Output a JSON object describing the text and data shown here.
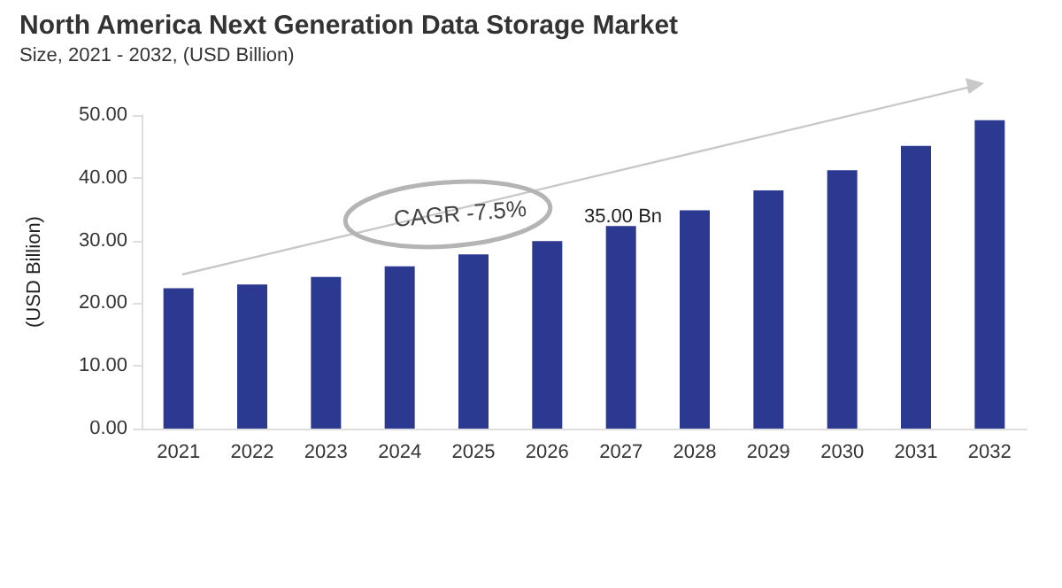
{
  "chart_data": {
    "type": "bar",
    "title": "North America Next Generation Data Storage Market",
    "subtitle": "Size, 2021 - 2032, (USD Billion)",
    "ylabel": "(USD Billion)",
    "categories": [
      "2021",
      "2022",
      "2023",
      "2024",
      "2025",
      "2026",
      "2027",
      "2028",
      "2029",
      "2030",
      "2031",
      "2032"
    ],
    "values": [
      22.4,
      23.0,
      24.2,
      25.9,
      27.8,
      29.9,
      32.3,
      34.8,
      38.0,
      41.2,
      45.1,
      49.2
    ],
    "color": "#2b3990",
    "ylim": [
      0,
      50
    ],
    "yticks": [
      {
        "value": 0,
        "label": "0.00"
      },
      {
        "value": 10,
        "label": "10.00"
      },
      {
        "value": 20,
        "label": "20.00"
      },
      {
        "value": 30,
        "label": "30.00"
      },
      {
        "value": 40,
        "label": "40.00"
      },
      {
        "value": 50,
        "label": "50.00"
      }
    ],
    "annotations": [
      "CAGR -7.5%",
      "35.00 Bn"
    ],
    "grid": false
  }
}
